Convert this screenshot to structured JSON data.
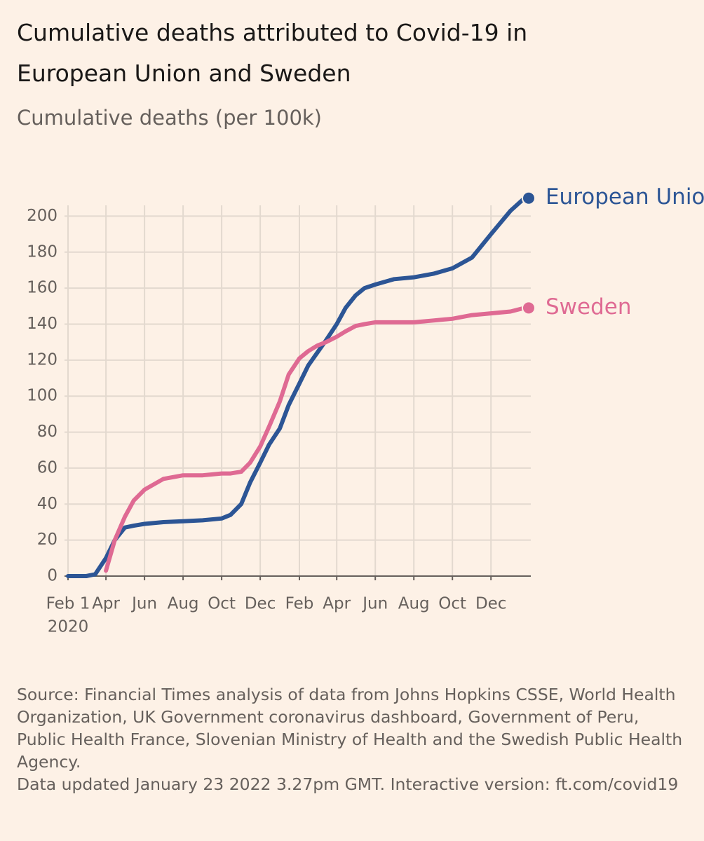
{
  "chart_data": {
    "type": "line",
    "title": "Cumulative deaths attributed to Covid-19 in European Union and Sweden",
    "subtitle": "Cumulative deaths (per 100k)",
    "x": [
      "2020-02-01",
      "2020-03-01",
      "2020-03-15",
      "2020-04-01",
      "2020-04-15",
      "2020-05-01",
      "2020-05-15",
      "2020-06-01",
      "2020-07-01",
      "2020-08-01",
      "2020-09-01",
      "2020-10-01",
      "2020-10-15",
      "2020-11-01",
      "2020-11-15",
      "2020-12-01",
      "2020-12-15",
      "2021-01-01",
      "2021-01-15",
      "2021-02-01",
      "2021-02-15",
      "2021-03-01",
      "2021-03-15",
      "2021-04-01",
      "2021-04-15",
      "2021-05-01",
      "2021-05-15",
      "2021-06-01",
      "2021-07-01",
      "2021-08-01",
      "2021-09-01",
      "2021-10-01",
      "2021-11-01",
      "2021-12-01",
      "2022-01-01",
      "2022-01-23"
    ],
    "series": [
      {
        "name": "European Union",
        "color": "#2c5595",
        "values": [
          0,
          0,
          1,
          10,
          20,
          27,
          28,
          29,
          30,
          30.5,
          31,
          32,
          34,
          40,
          52,
          63,
          73,
          82,
          95,
          107,
          117,
          124,
          131,
          140,
          149,
          156,
          160,
          162,
          165,
          166,
          168,
          171,
          177,
          190,
          203,
          210
        ]
      },
      {
        "name": "Sweden",
        "color": "#df6a93",
        "values": [
          null,
          null,
          null,
          3,
          20,
          33,
          42,
          48,
          54,
          56,
          56,
          57,
          57,
          58,
          63,
          72,
          83,
          97,
          112,
          121,
          125,
          128,
          130,
          133,
          136,
          139,
          140,
          141,
          141,
          141,
          142,
          143,
          145,
          146,
          147,
          149
        ]
      }
    ],
    "xlim": [
      "2020-02-01",
      "2022-02-02"
    ],
    "xticks": [
      {
        "value": "2020-02-01",
        "label": "Feb 1"
      },
      {
        "value": "2020-04-01",
        "label": "Apr"
      },
      {
        "value": "2020-06-01",
        "label": "Jun"
      },
      {
        "value": "2020-08-01",
        "label": "Aug"
      },
      {
        "value": "2020-10-01",
        "label": "Oct"
      },
      {
        "value": "2020-12-01",
        "label": "Dec"
      },
      {
        "value": "2021-02-01",
        "label": "Feb"
      },
      {
        "value": "2021-04-01",
        "label": "Apr"
      },
      {
        "value": "2021-06-01",
        "label": "Jun"
      },
      {
        "value": "2021-08-01",
        "label": "Aug"
      },
      {
        "value": "2021-10-01",
        "label": "Oct"
      },
      {
        "value": "2021-12-01",
        "label": "Dec"
      }
    ],
    "xtick_year": "2020",
    "ylim": [
      0,
      206
    ],
    "yticks": [
      0,
      20,
      40,
      60,
      80,
      100,
      120,
      140,
      160,
      180,
      200
    ],
    "grid": true,
    "source": "Source: Financial Times analysis of data from Johns Hopkins CSSE, World Health Organization, UK Government coronavirus dashboard, Government of Peru, Public Health France, Slovenian Ministry of Health and the Swedish Public Health Agency.",
    "note": "Data updated January 23 2022 3.27pm GMT. Interactive version: ft.com/covid19"
  }
}
